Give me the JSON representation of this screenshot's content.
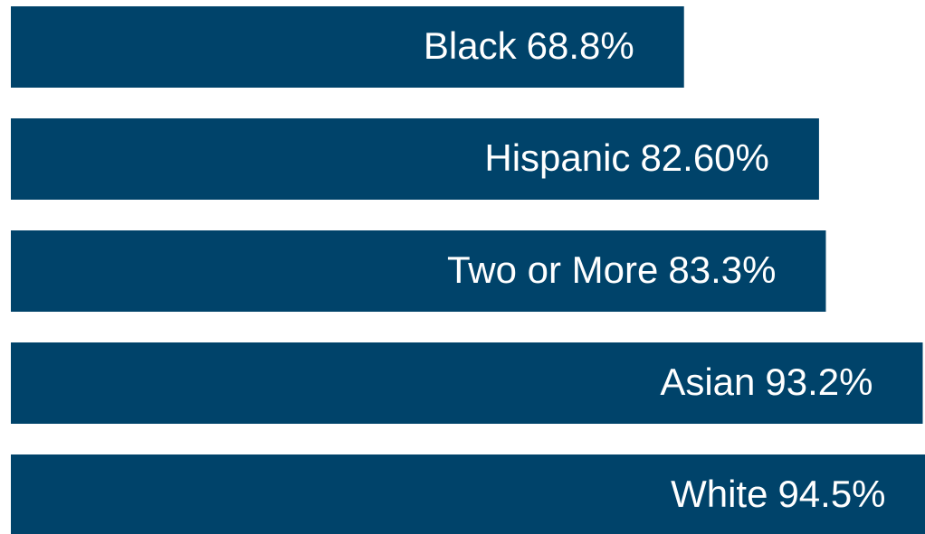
{
  "chart_data": {
    "type": "bar",
    "orientation": "horizontal",
    "categories": [
      "Black",
      "Hispanic",
      "Two or More",
      "Asian",
      "White"
    ],
    "values": [
      68.8,
      82.6,
      83.3,
      93.2,
      94.5
    ],
    "value_labels": [
      "68.8%",
      "82.60%",
      "83.3%",
      "93.2%",
      "94.5%"
    ],
    "color": "#00436a"
  }
}
